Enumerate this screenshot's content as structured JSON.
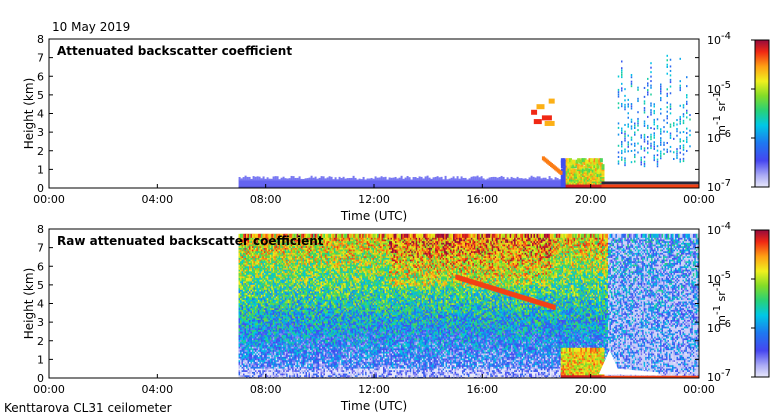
{
  "header": {
    "date": "10 May 2019"
  },
  "footer": {
    "site": "Kenttarova CL31 ceilometer"
  },
  "chart_data": [
    {
      "type": "heatmap",
      "title": "Attenuated backscatter coefficient",
      "xlabel": "Time (UTC)",
      "ylabel": "Height (km)",
      "xlim": [
        0,
        24
      ],
      "ylim": [
        0,
        8
      ],
      "x_ticks": [
        "00:00",
        "04:00",
        "08:00",
        "12:00",
        "16:00",
        "20:00",
        "00:00"
      ],
      "y_ticks": [
        "0",
        "1",
        "2",
        "3",
        "4",
        "5",
        "6",
        "7",
        "8"
      ],
      "colorbar": {
        "min": "10",
        "min_exp": "-7",
        "max": "10",
        "max_exp": "-4",
        "ticks": [
          "-4",
          "-5",
          "-6",
          "-7"
        ],
        "unit": "m",
        "unit_exp": "-1",
        "unit2": "sr",
        "unit2_exp": "-1"
      },
      "data_start_hour": 7.0,
      "surface_layer_top_km": 0.4,
      "features": [
        {
          "name": "low backscatter layer",
          "t0": 7.0,
          "t1": 19.0,
          "h0": 0,
          "h1": 0.45,
          "level": 0.1
        },
        {
          "name": "cloud/precipitation",
          "t0": 18.9,
          "t1": 20.4,
          "h0": 0,
          "h1": 1.6,
          "level": 0.7
        },
        {
          "name": "elevated patches",
          "t0": 17.8,
          "t1": 18.6,
          "h0": 3.9,
          "h1": 4.9,
          "level": 0.95
        },
        {
          "name": "sparse high signal",
          "t0": 21.0,
          "t1": 23.7,
          "h0": 1.0,
          "h1": 7.3,
          "level": 0.2
        }
      ]
    },
    {
      "type": "heatmap",
      "title": "Raw attenuated backscatter coefficient",
      "xlabel": "Time (UTC)",
      "ylabel": "Height (km)",
      "xlim": [
        0,
        24
      ],
      "ylim": [
        0,
        8
      ],
      "x_ticks": [
        "00:00",
        "04:00",
        "08:00",
        "12:00",
        "16:00",
        "20:00",
        "00:00"
      ],
      "y_ticks": [
        "0",
        "1",
        "2",
        "3",
        "4",
        "5",
        "6",
        "7",
        "8"
      ],
      "colorbar": {
        "min": "10",
        "min_exp": "-7",
        "max": "10",
        "max_exp": "-4",
        "ticks": [
          "-4",
          "-5",
          "-6",
          "-7"
        ],
        "unit": "m",
        "unit_exp": "-1",
        "unit2": "sr",
        "unit2_exp": "-1"
      },
      "data_start_hour": 7.0,
      "data_top_km": 7.7,
      "features": [
        {
          "name": "noise field",
          "t0": 7.0,
          "t1": 24.0,
          "h0": 0,
          "h1": 7.7
        },
        {
          "name": "elevated aerosol layer",
          "t0": 15.0,
          "t1": 18.6,
          "h0": 3.8,
          "h1": 5.5
        },
        {
          "name": "cloud/precipitation",
          "t0": 18.9,
          "t1": 20.4,
          "h0": 0,
          "h1": 1.6
        }
      ]
    }
  ]
}
